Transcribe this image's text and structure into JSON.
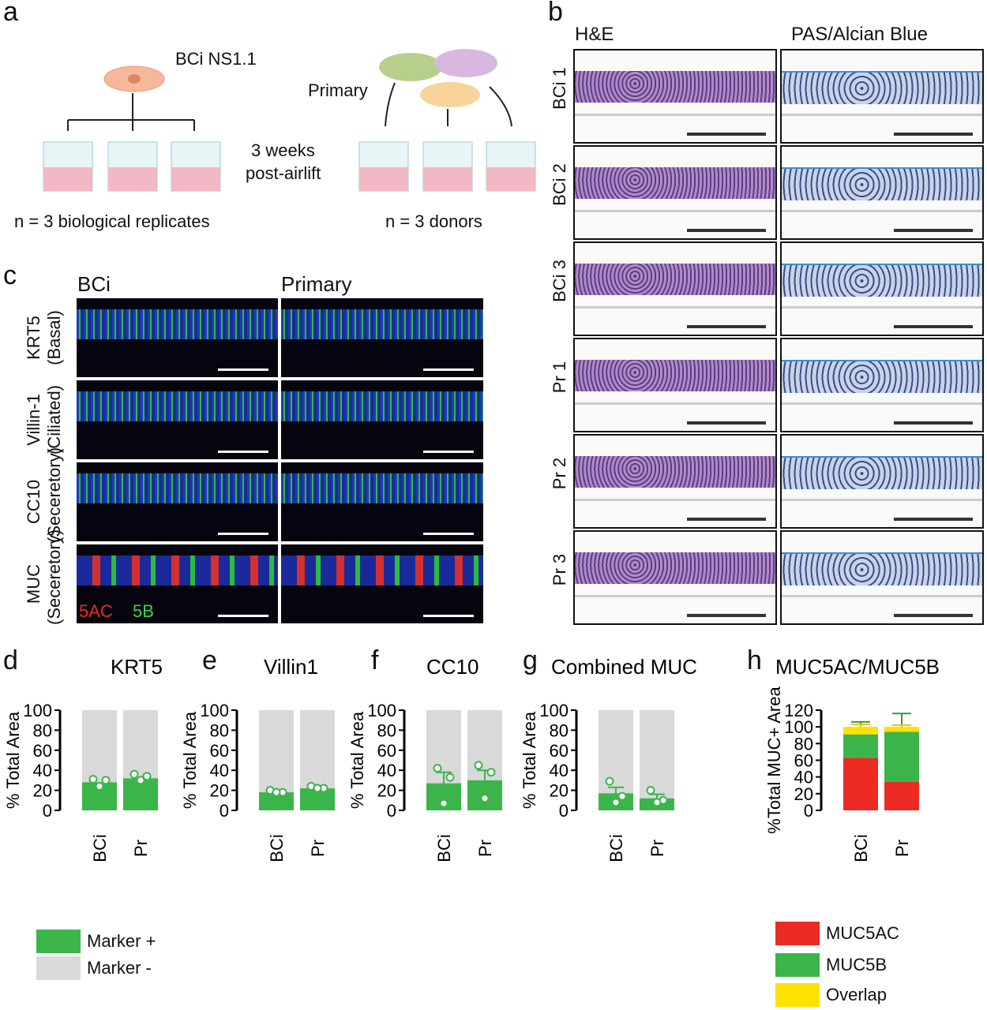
{
  "panels": {
    "a": "a",
    "b": "b",
    "c": "c",
    "d": "d",
    "e": "e",
    "f": "f",
    "g": "g",
    "h": "h"
  },
  "panel_a": {
    "cell_line": "BCi NS1.1",
    "primary": "Primary",
    "timepoint_1": "3 weeks",
    "timepoint_2": "post-airlift",
    "n_bci": "n = 3 biological replicates",
    "n_primary": "n = 3 donors"
  },
  "panel_b": {
    "col_he": "H&E",
    "col_pas": "PAS/Alcian Blue",
    "rows": [
      "BCi 1",
      "BCi 2",
      "BCi 3",
      "Pr 1",
      "Pr 2",
      "Pr 3"
    ]
  },
  "panel_c": {
    "col_bci": "BCi",
    "col_primary": "Primary",
    "rows": [
      {
        "marker": "KRT5",
        "type": "(Basal)"
      },
      {
        "marker": "Villin-1",
        "type": "(Ciliated)"
      },
      {
        "marker": "CC10",
        "type": "(Seceretory)"
      },
      {
        "marker": "MUC",
        "type": "(Seceretory)"
      }
    ],
    "muc_5ac": "5AC",
    "muc_5b": "5B"
  },
  "legend_dg": {
    "pos": "Marker +",
    "neg": "Marker -"
  },
  "colors": {
    "green": "#3bb54a",
    "gray": "#d9d9d9",
    "red": "#ec2a24",
    "yellow": "#ffe100"
  },
  "chart_data": [
    {
      "type": "bar",
      "title": "KRT5",
      "ylabel": "% Total Area",
      "categories": [
        "BCi",
        "Pr"
      ],
      "ylim": [
        0,
        100
      ],
      "yticks": [
        0,
        20,
        40,
        60,
        80,
        100
      ],
      "series": [
        {
          "name": "Marker +",
          "values": [
            28,
            32
          ]
        },
        {
          "name": "Marker -",
          "values": [
            72,
            68
          ]
        }
      ],
      "points": [
        [
          31,
          30,
          24
        ],
        [
          36,
          34,
          30
        ]
      ]
    },
    {
      "type": "bar",
      "title": "Villin1",
      "ylabel": "% Total Area",
      "categories": [
        "BCi",
        "Pr"
      ],
      "ylim": [
        0,
        100
      ],
      "yticks": [
        0,
        20,
        40,
        60,
        80,
        100
      ],
      "series": [
        {
          "name": "Marker +",
          "values": [
            18,
            22
          ]
        },
        {
          "name": "Marker -",
          "values": [
            82,
            78
          ]
        }
      ],
      "points": [
        [
          20,
          18,
          18
        ],
        [
          24,
          22,
          22
        ]
      ]
    },
    {
      "type": "bar",
      "title": "CC10",
      "ylabel": "% Total Area",
      "categories": [
        "BCi",
        "Pr"
      ],
      "ylim": [
        0,
        100
      ],
      "yticks": [
        0,
        20,
        40,
        60,
        80,
        100
      ],
      "series": [
        {
          "name": "Marker +",
          "values": [
            27,
            30
          ]
        },
        {
          "name": "Marker -",
          "values": [
            73,
            70
          ]
        }
      ],
      "points": [
        [
          42,
          33,
          7
        ],
        [
          45,
          38,
          12
        ]
      ],
      "error": [
        11,
        10
      ]
    },
    {
      "type": "bar",
      "title": "Combined MUC",
      "ylabel": "% Total Area",
      "categories": [
        "BCi",
        "Pr"
      ],
      "ylim": [
        0,
        100
      ],
      "yticks": [
        0,
        20,
        40,
        60,
        80,
        100
      ],
      "series": [
        {
          "name": "Marker +",
          "values": [
            17,
            12
          ]
        },
        {
          "name": "Marker -",
          "values": [
            83,
            88
          ]
        }
      ],
      "points": [
        [
          29,
          14,
          8
        ],
        [
          20,
          10,
          8
        ]
      ],
      "error": [
        6,
        4
      ]
    },
    {
      "type": "stacked-bar",
      "title": "MUC5AC/MUC5B",
      "ylabel": "%Total MUC+ Area",
      "categories": [
        "BCi",
        "Pr"
      ],
      "ylim": [
        0,
        120
      ],
      "yticks": [
        0,
        20,
        40,
        60,
        80,
        100,
        120
      ],
      "series": [
        {
          "name": "MUC5AC",
          "values": [
            63,
            34
          ],
          "error": [
            18,
            21
          ]
        },
        {
          "name": "MUC5B",
          "values": [
            28,
            60
          ],
          "error": [
            15,
            22
          ]
        },
        {
          "name": "Overlap",
          "values": [
            9,
            6
          ],
          "error": [
            3,
            2
          ]
        }
      ]
    }
  ]
}
